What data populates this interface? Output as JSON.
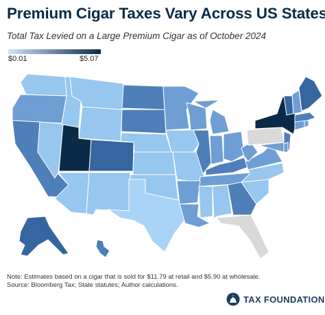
{
  "title": "Premium Cigar Taxes Vary Across US States",
  "subtitle": "Total Tax Levied on a Large Premium Cigar as of October 2024",
  "legend": {
    "min_label": "$0.01",
    "max_label": "$5.07",
    "color_low": "#cfe3fb",
    "color_high": "#0b2a47"
  },
  "colors": {
    "no_data": "#d9d9d9",
    "very_light": "#a9d4f7",
    "light": "#97c6ee",
    "medium": "#6e9ed3",
    "medium_dark": "#4f7fb8",
    "dark": "#36669f",
    "darkest": "#0b2a47"
  },
  "map_data": {
    "tiers": {
      "darkest": [
        "UT",
        "NY"
      ],
      "dark": [
        "AK",
        "ME",
        "VT",
        "CO"
      ],
      "medium_dark": [
        "CA",
        "SD",
        "ND",
        "IL",
        "NJ",
        "MA",
        "KY",
        "GA",
        "HI"
      ],
      "medium": [
        "OR",
        "IN",
        "MN",
        "MI",
        "WI",
        "OH",
        "WV",
        "VA",
        "LA",
        "TN",
        "MD",
        "CT",
        "NH",
        "RI",
        "DE",
        "AR"
      ],
      "light": [
        "WA",
        "ID",
        "MT",
        "WY",
        "NE",
        "KS",
        "IA",
        "MO",
        "NV",
        "NM",
        "OK",
        "NC",
        "SC",
        "AL",
        "MS",
        "AZ"
      ],
      "very_light": [
        "TX"
      ],
      "no_data": [
        "PA",
        "FL"
      ]
    }
  },
  "note_line1": "Note: Estimates based on a cigar that is sold for $11.79 at retail and $5.90 at wholesale.",
  "note_line2": "Source: Bloomberg Tax; State statutes; Author calculations.",
  "logo_text": "TAX FOUNDATION"
}
